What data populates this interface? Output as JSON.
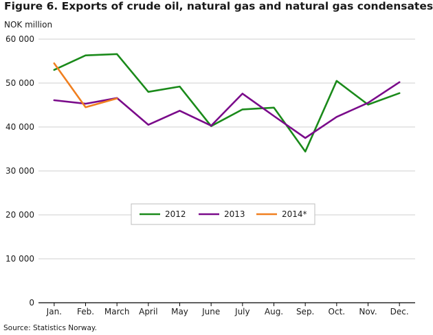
{
  "header": {
    "title": "Figure 6. Exports of crude oil, natural gas and natural gas condensates",
    "unit_label": "NOK million"
  },
  "footer": {
    "source": "Source: Statistics Norway."
  },
  "chart_data": {
    "type": "line",
    "title": "Figure 6. Exports of crude oil, natural gas and natural gas condensates",
    "xlabel": "",
    "ylabel": "NOK million",
    "categories": [
      "Jan.",
      "Feb.",
      "March",
      "April",
      "May",
      "June",
      "July",
      "Aug.",
      "Sep.",
      "Oct.",
      "Nov.",
      "Dec."
    ],
    "ylim": [
      0,
      60000
    ],
    "y_ticks": [
      0,
      10000,
      20000,
      30000,
      40000,
      50000,
      60000
    ],
    "y_tick_labels": [
      "0",
      "10 000",
      "20 000",
      "30 000",
      "40 000",
      "50 000",
      "60 000"
    ],
    "grid": "horizontal",
    "legend_position": "center",
    "series": [
      {
        "name": "2012",
        "color": "#1a8a1a",
        "values": [
          53000,
          56300,
          56600,
          48000,
          49200,
          40200,
          44000,
          44400,
          34400,
          50500,
          45100,
          47700
        ]
      },
      {
        "name": "2013",
        "color": "#7a0a8a",
        "values": [
          46100,
          45300,
          46600,
          40500,
          43700,
          40300,
          47600,
          42500,
          37500,
          42300,
          45500,
          50200
        ]
      },
      {
        "name": "2014*",
        "color": "#f07f1f",
        "values": [
          54500,
          44500,
          46500,
          null,
          null,
          null,
          null,
          null,
          null,
          null,
          null,
          null
        ]
      }
    ]
  }
}
